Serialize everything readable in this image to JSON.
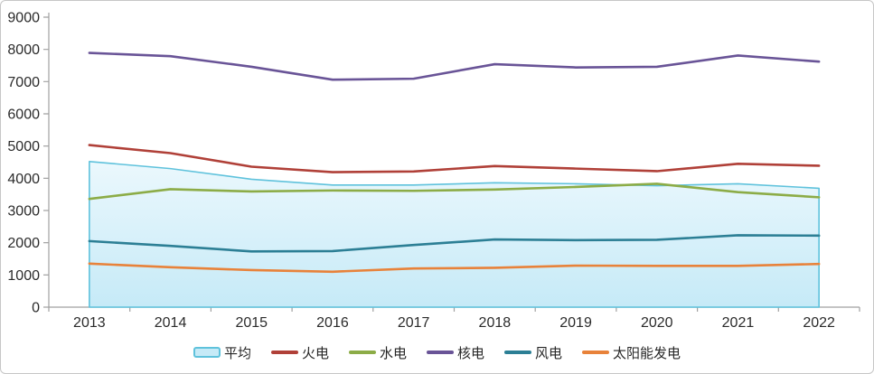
{
  "frame": {
    "background": "#ffffff",
    "border_color": "#c6c6c6",
    "axis_color": "#a0a0a0",
    "label_color": "#2b2b2b"
  },
  "chart_data": {
    "type": "area",
    "title": "",
    "xlabel": "",
    "ylabel": "",
    "x": [
      "2013",
      "2014",
      "2015",
      "2016",
      "2017",
      "2018",
      "2019",
      "2020",
      "2021",
      "2022"
    ],
    "ylim": [
      0,
      9000
    ],
    "ytick_step": 1000,
    "grid": false,
    "legend_position": "bottom",
    "series": [
      {
        "key": "average",
        "name": "平均",
        "kind": "area",
        "color": "#5fc2dc",
        "fill_top": "#ebf8fd",
        "fill_bottom": "#c6eaf7",
        "values": [
          4520,
          4300,
          3970,
          3790,
          3790,
          3860,
          3830,
          3770,
          3830,
          3690
        ]
      },
      {
        "key": "thermal",
        "name": "火电",
        "kind": "line",
        "color": "#b04038",
        "values": [
          5030,
          4780,
          4360,
          4190,
          4210,
          4380,
          4300,
          4220,
          4450,
          4390
        ]
      },
      {
        "key": "hydro",
        "name": "水电",
        "kind": "line",
        "color": "#8cac47",
        "values": [
          3360,
          3660,
          3590,
          3620,
          3610,
          3650,
          3730,
          3830,
          3570,
          3410
        ]
      },
      {
        "key": "nuclear",
        "name": "核电",
        "kind": "line",
        "color": "#695497",
        "values": [
          7890,
          7790,
          7460,
          7060,
          7090,
          7540,
          7440,
          7460,
          7810,
          7620
        ]
      },
      {
        "key": "wind",
        "name": "风电",
        "kind": "line",
        "color": "#2c7f95",
        "values": [
          2050,
          1900,
          1730,
          1740,
          1930,
          2100,
          2080,
          2090,
          2230,
          2220
        ]
      },
      {
        "key": "solar",
        "name": "太阳能发电",
        "kind": "line",
        "color": "#e8823a",
        "values": [
          1350,
          1240,
          1150,
          1100,
          1200,
          1220,
          1290,
          1280,
          1280,
          1340
        ]
      }
    ]
  }
}
